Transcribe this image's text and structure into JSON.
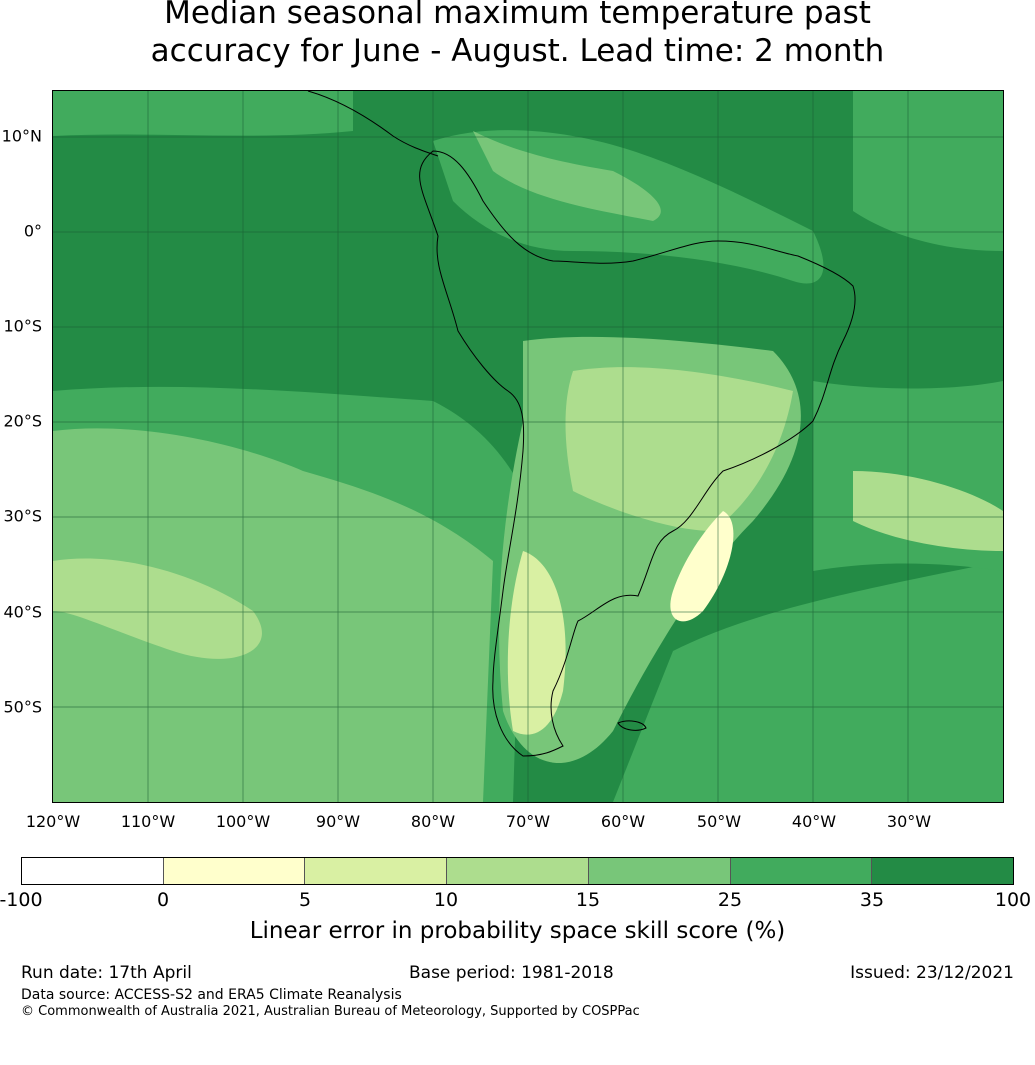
{
  "title": {
    "line1": "Median seasonal maximum temperature past",
    "line2": "accuracy for June - August. Lead time: 2 month"
  },
  "map": {
    "lat_labels": [
      "10°N",
      "0°",
      "10°S",
      "20°S",
      "30°S",
      "40°S",
      "50°S"
    ],
    "lon_labels": [
      "120°W",
      "110°W",
      "100°W",
      "90°W",
      "80°W",
      "70°W",
      "60°W",
      "50°W",
      "40°W",
      "30°W"
    ],
    "background_color": "#238b45",
    "coastline_color": "#000000"
  },
  "colorbar": {
    "ticks": [
      "-100",
      "0",
      "5",
      "10",
      "15",
      "25",
      "35",
      "100"
    ],
    "colors": [
      "#ffffff",
      "#ffffcc",
      "#d9f0a3",
      "#addd8e",
      "#78c679",
      "#41ab5d",
      "#238b45"
    ],
    "label": "Linear error in probability space skill score (%)"
  },
  "footer": {
    "run_date": "Run date: 17th April",
    "base_period": "Base period: 1981-2018",
    "issued": "Issued: 23/12/2021",
    "data_source": "Data source: ACCESS-S2 and ERA5 Climate Reanalysis",
    "copyright": "© Commonwealth of Australia 2021, Australian Bureau of Meteorology, Supported by COSPPac"
  }
}
